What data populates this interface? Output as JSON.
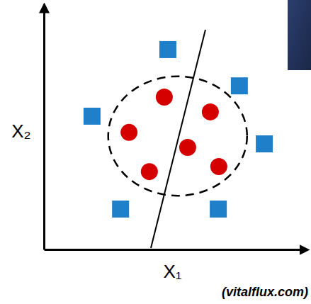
{
  "chart_data": {
    "type": "scatter",
    "x_label": "X₁",
    "y_label": "X₂",
    "annotations": [
      "(vitalflux.com)"
    ],
    "xlim": [
      0,
      100
    ],
    "ylim": [
      0,
      100
    ],
    "xticks": [],
    "yticks": [],
    "tick_labels": false,
    "grid": false,
    "series": [
      {
        "color": "#d50000",
        "marker": "circle",
        "x": [
          46.8,
          64.7,
          33.1,
          55.9,
          41.0,
          68.0
        ],
        "values": [
          63.8,
          57.6,
          49.0,
          42.7,
          32.6,
          34.7
        ]
      },
      {
        "color": "#1f7fc9",
        "marker": "square",
        "x": [
          48.2,
          76.0,
          18.7,
          85.7,
          29.8,
          67.8
        ],
        "values": [
          83.7,
          68.5,
          55.8,
          44.2,
          16.9,
          16.9
        ]
      }
    ],
    "circle_boundary": {
      "center": [
        52,
        47.5
      ],
      "radius_x": 27,
      "radius_y": 25
    },
    "line_boundary": {
      "x": [
        41.6,
        62.8
      ],
      "y": [
        0.6,
        92
      ]
    }
  }
}
